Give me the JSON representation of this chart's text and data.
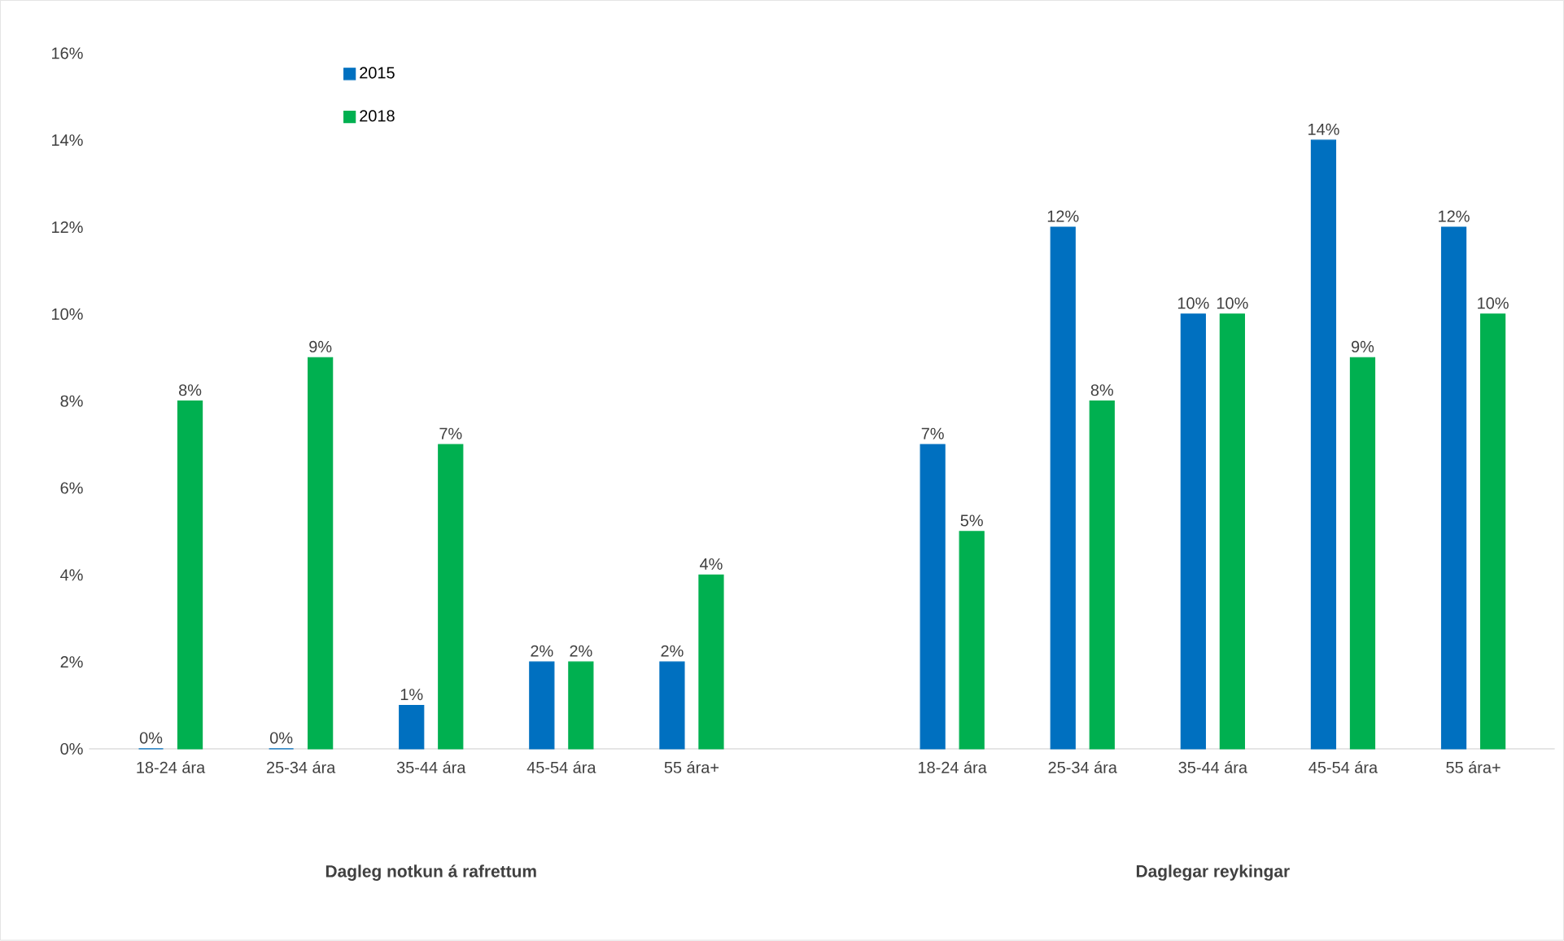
{
  "chart_data": {
    "type": "bar",
    "categories": [
      "18-24 ára",
      "25-34 ára",
      "35-44 ára",
      "45-54 ára",
      "55 ára+",
      null,
      "18-24 ára",
      "25-34 ára",
      "35-44 ára",
      "45-54 ára",
      "55 ára+"
    ],
    "series": [
      {
        "name": "2015",
        "color": "#0070c0",
        "values": [
          0,
          0,
          1,
          2,
          2,
          null,
          7,
          12,
          10,
          14,
          12
        ],
        "value_labels": [
          "0%",
          "0%",
          "1%",
          "2%",
          "2%",
          null,
          "7%",
          "12%",
          "10%",
          "14%",
          "12%"
        ]
      },
      {
        "name": "2018",
        "color": "#00b050",
        "values": [
          8,
          9,
          7,
          2,
          4,
          null,
          5,
          8,
          10,
          9,
          10
        ],
        "value_labels": [
          "8%",
          "9%",
          "7%",
          "2%",
          "4%",
          null,
          "5%",
          "8%",
          "10%",
          "9%",
          "10%"
        ]
      }
    ],
    "ylim": [
      0,
      16
    ],
    "yticks": [
      {
        "value": 0,
        "label": "0%"
      },
      {
        "value": 2,
        "label": "2%"
      },
      {
        "value": 4,
        "label": "4%"
      },
      {
        "value": 6,
        "label": "6%"
      },
      {
        "value": 8,
        "label": "8%"
      },
      {
        "value": 10,
        "label": "10%"
      },
      {
        "value": 12,
        "label": "12%"
      },
      {
        "value": 14,
        "label": "14%"
      },
      {
        "value": 16,
        "label": "16%"
      }
    ],
    "legend": "top left",
    "annotations": [
      "Dagleg notkun á rafrettum",
      "Daglegar reykingar"
    ]
  }
}
